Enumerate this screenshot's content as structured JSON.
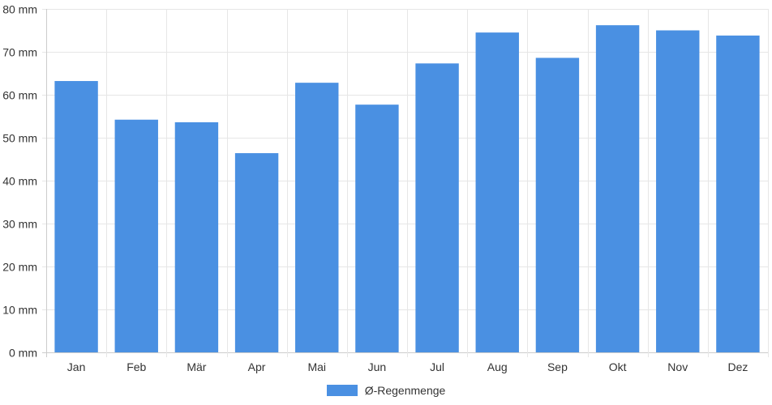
{
  "chart_data": {
    "type": "bar",
    "categories": [
      "Jan",
      "Feb",
      "Mär",
      "Apr",
      "Mai",
      "Jun",
      "Jul",
      "Aug",
      "Sep",
      "Okt",
      "Nov",
      "Dez"
    ],
    "series": [
      {
        "name": "Ø-Regenmenge",
        "values": [
          63.2,
          54.2,
          53.6,
          46.4,
          62.8,
          57.7,
          67.3,
          74.5,
          68.6,
          76.2,
          75.0,
          73.8
        ],
        "color": "#4a90e2"
      }
    ],
    "y_ticks": [
      "0 mm",
      "10 mm",
      "20 mm",
      "30 mm",
      "40 mm",
      "50 mm",
      "60 mm",
      "70 mm",
      "80 mm"
    ],
    "ylim": [
      0,
      80
    ],
    "y_unit": "mm",
    "grid": true,
    "legend_position": "bottom-center",
    "grid_color": "#e6e6e6",
    "axis_color": "#cccccc"
  }
}
